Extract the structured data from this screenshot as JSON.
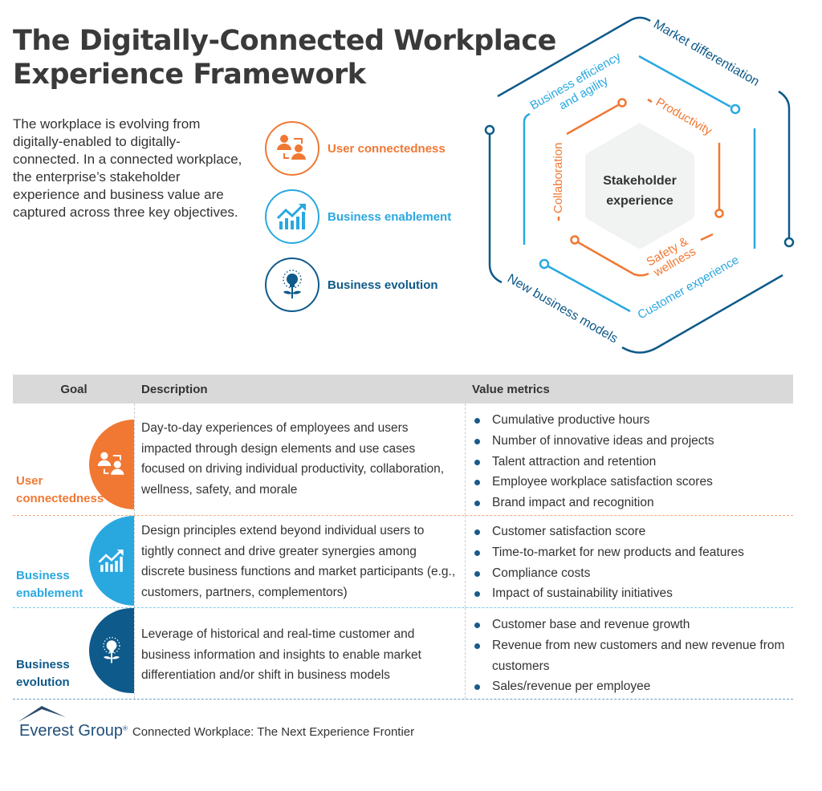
{
  "title_line1": "The Digitally-Connected Workplace",
  "title_line2": "Experience Framework",
  "intro": "The workplace is evolving from digitally-enabled to digitally-connected. In a connected workplace, the enterprise’s stakeholder experience and business value are captured across three key objectives.",
  "colors": {
    "orange": "#F07833",
    "light_blue": "#29A8E0",
    "dark_blue": "#0E5A8A",
    "header_gray": "#D9D9D9"
  },
  "objectives": [
    {
      "label": "User connectedness",
      "icon": "users-connected-icon"
    },
    {
      "label": "Business enablement",
      "icon": "growth-chart-icon"
    },
    {
      "label": "Business evolution",
      "icon": "lightbulb-plant-icon"
    }
  ],
  "diagram": {
    "center_line1": "Stakeholder",
    "center_line2": "experience",
    "outer": [
      "Market differentiation",
      "New business models"
    ],
    "middle": [
      "Business efficiency",
      "and agility",
      "Customer experience"
    ],
    "inner": [
      "Productivity",
      "Collaboration",
      "Safety &",
      "wellness"
    ]
  },
  "table": {
    "headers": [
      "Goal",
      "Description",
      "Value metrics"
    ],
    "rows": [
      {
        "goal_line1": "User",
        "goal_line2": "connectedness",
        "description": "Day-to-day experiences of employees and users impacted through design elements and use cases focused on driving individual productivity, collaboration, wellness, safety, and morale",
        "metrics": [
          "Cumulative productive hours",
          "Number of innovative ideas and projects",
          "Talent attraction and retention",
          "Employee workplace satisfaction scores",
          "Brand impact and recognition"
        ]
      },
      {
        "goal_line1": "Business",
        "goal_line2": "enablement",
        "description": "Design principles extend beyond individual users to tightly connect and drive greater synergies among discrete business functions and market participants (e.g., customers, partners, complementors)",
        "metrics": [
          "Customer satisfaction score",
          "Time-to-market for new products and features",
          "Compliance costs",
          "Impact of sustainability initiatives"
        ]
      },
      {
        "goal_line1": "Business",
        "goal_line2": "evolution",
        "description": "Leverage of historical and real-time customer and business information and insights to enable market differentiation and/or shift in business models",
        "metrics": [
          "Customer base and revenue growth",
          "Revenue from new customers and new revenue from customers",
          "Sales/revenue per employee"
        ]
      }
    ]
  },
  "footer": {
    "logo": "Everest Group",
    "caption": "Connected Workplace: The Next Experience Frontier"
  }
}
